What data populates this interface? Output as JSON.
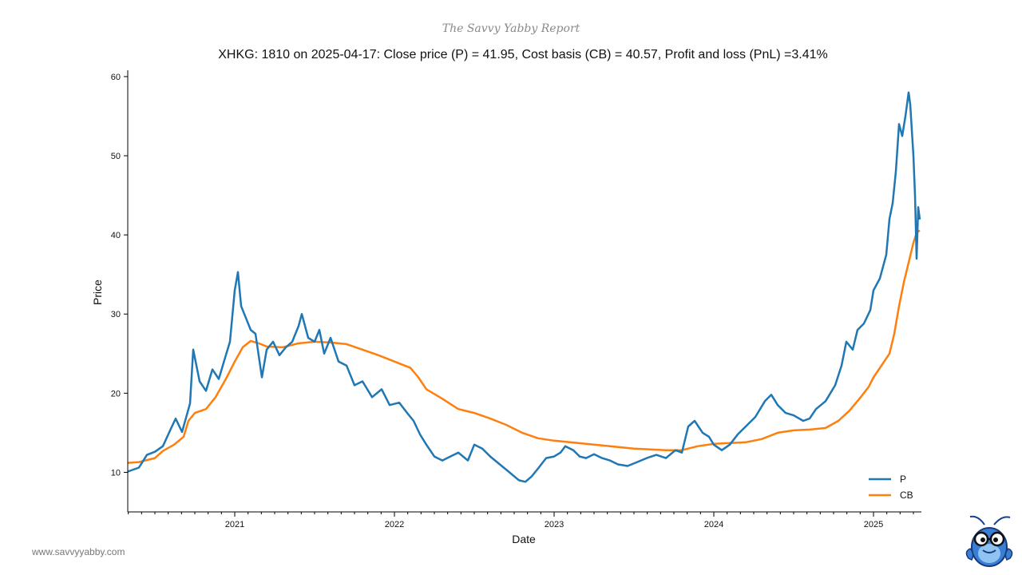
{
  "report_name": "The Savvy Yabby Report",
  "website": "www.savvyyabby.com",
  "mascot": "yabby-mascot-icon",
  "colors": {
    "p": "#1f77b4",
    "cb": "#ff7f0e",
    "axis": "#000000"
  },
  "chart_data": {
    "type": "line",
    "title": "XHKG: 1810 on 2025-04-17: Close price (P) = 41.95, Cost basis (CB) = 40.57, Profit and loss (PnL) =3.41%",
    "xlabel": "Date",
    "ylabel": "Price",
    "xlim": [
      2020.33,
      2025.3
    ],
    "ylim": [
      5.0,
      60.8
    ],
    "x_ticks": [
      2021,
      2022,
      2023,
      2024,
      2025
    ],
    "x_tick_labels": [
      "2021",
      "2022",
      "2023",
      "2024",
      "2025"
    ],
    "y_ticks": [
      10,
      20,
      30,
      40,
      50,
      60
    ],
    "y_tick_labels": [
      "10",
      "20",
      "30",
      "40",
      "50",
      "60"
    ],
    "legend_position": "bottom-right",
    "series": [
      {
        "name": "P",
        "points": [
          [
            2020.33,
            10.1
          ],
          [
            2020.4,
            10.6
          ],
          [
            2020.45,
            12.2
          ],
          [
            2020.5,
            12.6
          ],
          [
            2020.55,
            13.3
          ],
          [
            2020.6,
            15.5
          ],
          [
            2020.63,
            16.8
          ],
          [
            2020.67,
            15.1
          ],
          [
            2020.72,
            18.7
          ],
          [
            2020.74,
            25.5
          ],
          [
            2020.78,
            21.5
          ],
          [
            2020.82,
            20.3
          ],
          [
            2020.86,
            23.0
          ],
          [
            2020.9,
            21.8
          ],
          [
            2020.94,
            24.5
          ],
          [
            2020.97,
            26.5
          ],
          [
            2021.0,
            33.0
          ],
          [
            2021.02,
            35.3
          ],
          [
            2021.04,
            31.0
          ],
          [
            2021.07,
            29.5
          ],
          [
            2021.1,
            28.0
          ],
          [
            2021.13,
            27.5
          ],
          [
            2021.17,
            22.0
          ],
          [
            2021.2,
            25.5
          ],
          [
            2021.24,
            26.5
          ],
          [
            2021.28,
            24.8
          ],
          [
            2021.32,
            25.8
          ],
          [
            2021.36,
            26.5
          ],
          [
            2021.4,
            28.5
          ],
          [
            2021.42,
            30.0
          ],
          [
            2021.46,
            27.0
          ],
          [
            2021.5,
            26.5
          ],
          [
            2021.53,
            28.0
          ],
          [
            2021.56,
            25.0
          ],
          [
            2021.6,
            27.0
          ],
          [
            2021.65,
            24.0
          ],
          [
            2021.7,
            23.5
          ],
          [
            2021.75,
            21.0
          ],
          [
            2021.8,
            21.5
          ],
          [
            2021.86,
            19.5
          ],
          [
            2021.92,
            20.5
          ],
          [
            2021.97,
            18.5
          ],
          [
            2022.03,
            18.8
          ],
          [
            2022.08,
            17.5
          ],
          [
            2022.12,
            16.5
          ],
          [
            2022.16,
            14.8
          ],
          [
            2022.2,
            13.5
          ],
          [
            2022.25,
            12.0
          ],
          [
            2022.3,
            11.5
          ],
          [
            2022.35,
            12.0
          ],
          [
            2022.4,
            12.5
          ],
          [
            2022.46,
            11.5
          ],
          [
            2022.5,
            13.5
          ],
          [
            2022.55,
            13.0
          ],
          [
            2022.6,
            12.0
          ],
          [
            2022.66,
            11.0
          ],
          [
            2022.72,
            10.0
          ],
          [
            2022.78,
            9.0
          ],
          [
            2022.82,
            8.8
          ],
          [
            2022.86,
            9.5
          ],
          [
            2022.9,
            10.5
          ],
          [
            2022.95,
            11.8
          ],
          [
            2023.0,
            12.0
          ],
          [
            2023.04,
            12.5
          ],
          [
            2023.07,
            13.3
          ],
          [
            2023.12,
            12.8
          ],
          [
            2023.16,
            12.0
          ],
          [
            2023.2,
            11.8
          ],
          [
            2023.25,
            12.3
          ],
          [
            2023.3,
            11.8
          ],
          [
            2023.35,
            11.5
          ],
          [
            2023.4,
            11.0
          ],
          [
            2023.46,
            10.8
          ],
          [
            2023.52,
            11.3
          ],
          [
            2023.58,
            11.8
          ],
          [
            2023.64,
            12.2
          ],
          [
            2023.7,
            11.8
          ],
          [
            2023.76,
            12.8
          ],
          [
            2023.8,
            12.5
          ],
          [
            2023.84,
            15.8
          ],
          [
            2023.88,
            16.5
          ],
          [
            2023.93,
            15.0
          ],
          [
            2023.97,
            14.5
          ],
          [
            2024.0,
            13.5
          ],
          [
            2024.05,
            12.8
          ],
          [
            2024.1,
            13.5
          ],
          [
            2024.15,
            14.8
          ],
          [
            2024.2,
            15.8
          ],
          [
            2024.26,
            17.0
          ],
          [
            2024.32,
            19.0
          ],
          [
            2024.36,
            19.8
          ],
          [
            2024.4,
            18.5
          ],
          [
            2024.45,
            17.5
          ],
          [
            2024.5,
            17.2
          ],
          [
            2024.56,
            16.5
          ],
          [
            2024.6,
            16.8
          ],
          [
            2024.64,
            18.0
          ],
          [
            2024.7,
            19.0
          ],
          [
            2024.76,
            21.0
          ],
          [
            2024.8,
            23.5
          ],
          [
            2024.83,
            26.5
          ],
          [
            2024.87,
            25.5
          ],
          [
            2024.9,
            28.0
          ],
          [
            2024.94,
            28.8
          ],
          [
            2024.98,
            30.5
          ],
          [
            2025.0,
            33.0
          ],
          [
            2025.04,
            34.5
          ],
          [
            2025.08,
            37.5
          ],
          [
            2025.1,
            42.0
          ],
          [
            2025.12,
            44.0
          ],
          [
            2025.14,
            48.0
          ],
          [
            2025.16,
            54.0
          ],
          [
            2025.18,
            52.5
          ],
          [
            2025.2,
            55.0
          ],
          [
            2025.22,
            58.0
          ],
          [
            2025.23,
            56.5
          ],
          [
            2025.25,
            50.0
          ],
          [
            2025.26,
            45.0
          ],
          [
            2025.27,
            37.0
          ],
          [
            2025.28,
            43.5
          ],
          [
            2025.29,
            41.95
          ]
        ]
      },
      {
        "name": "CB",
        "points": [
          [
            2020.33,
            11.2
          ],
          [
            2020.4,
            11.3
          ],
          [
            2020.5,
            11.8
          ],
          [
            2020.55,
            12.7
          ],
          [
            2020.62,
            13.5
          ],
          [
            2020.68,
            14.5
          ],
          [
            2020.71,
            16.5
          ],
          [
            2020.75,
            17.5
          ],
          [
            2020.82,
            18.0
          ],
          [
            2020.88,
            19.5
          ],
          [
            2020.95,
            22.0
          ],
          [
            2021.0,
            24.0
          ],
          [
            2021.05,
            25.8
          ],
          [
            2021.1,
            26.6
          ],
          [
            2021.15,
            26.3
          ],
          [
            2021.2,
            25.9
          ],
          [
            2021.3,
            25.8
          ],
          [
            2021.4,
            26.3
          ],
          [
            2021.5,
            26.5
          ],
          [
            2021.6,
            26.4
          ],
          [
            2021.7,
            26.2
          ],
          [
            2021.8,
            25.5
          ],
          [
            2021.9,
            24.8
          ],
          [
            2022.0,
            24.0
          ],
          [
            2022.1,
            23.2
          ],
          [
            2022.15,
            22.0
          ],
          [
            2022.2,
            20.5
          ],
          [
            2022.3,
            19.3
          ],
          [
            2022.4,
            18.0
          ],
          [
            2022.5,
            17.5
          ],
          [
            2022.6,
            16.8
          ],
          [
            2022.7,
            16.0
          ],
          [
            2022.8,
            15.0
          ],
          [
            2022.9,
            14.3
          ],
          [
            2023.0,
            14.0
          ],
          [
            2023.1,
            13.8
          ],
          [
            2023.2,
            13.6
          ],
          [
            2023.3,
            13.4
          ],
          [
            2023.4,
            13.2
          ],
          [
            2023.5,
            13.0
          ],
          [
            2023.6,
            12.9
          ],
          [
            2023.7,
            12.8
          ],
          [
            2023.8,
            12.8
          ],
          [
            2023.9,
            13.3
          ],
          [
            2024.0,
            13.6
          ],
          [
            2024.1,
            13.7
          ],
          [
            2024.2,
            13.8
          ],
          [
            2024.3,
            14.2
          ],
          [
            2024.4,
            15.0
          ],
          [
            2024.5,
            15.3
          ],
          [
            2024.6,
            15.4
          ],
          [
            2024.7,
            15.6
          ],
          [
            2024.78,
            16.5
          ],
          [
            2024.85,
            17.8
          ],
          [
            2024.92,
            19.5
          ],
          [
            2024.97,
            20.8
          ],
          [
            2025.0,
            22.0
          ],
          [
            2025.05,
            23.5
          ],
          [
            2025.1,
            25.0
          ],
          [
            2025.13,
            27.5
          ],
          [
            2025.16,
            31.0
          ],
          [
            2025.19,
            34.0
          ],
          [
            2025.22,
            36.5
          ],
          [
            2025.25,
            39.0
          ],
          [
            2025.27,
            40.3
          ],
          [
            2025.29,
            40.57
          ]
        ]
      }
    ]
  }
}
